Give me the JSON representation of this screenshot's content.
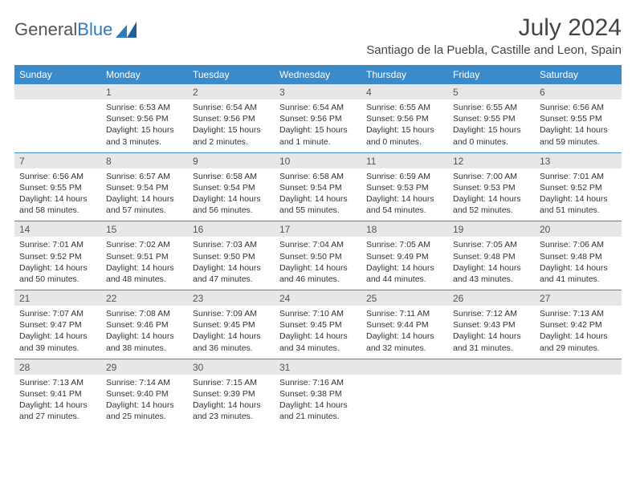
{
  "logo": {
    "text1": "General",
    "text2": "Blue"
  },
  "title": "July 2024",
  "location": "Santiago de la Puebla, Castille and Leon, Spain",
  "colors": {
    "header_bg": "#3b8aca",
    "header_text": "#ffffff",
    "daynum_bg": "#e7e7e7",
    "border": "#3b8aca"
  },
  "day_headers": [
    "Sunday",
    "Monday",
    "Tuesday",
    "Wednesday",
    "Thursday",
    "Friday",
    "Saturday"
  ],
  "weeks": [
    [
      {
        "num": "",
        "lines": []
      },
      {
        "num": "1",
        "lines": [
          "Sunrise: 6:53 AM",
          "Sunset: 9:56 PM",
          "Daylight: 15 hours",
          "and 3 minutes."
        ]
      },
      {
        "num": "2",
        "lines": [
          "Sunrise: 6:54 AM",
          "Sunset: 9:56 PM",
          "Daylight: 15 hours",
          "and 2 minutes."
        ]
      },
      {
        "num": "3",
        "lines": [
          "Sunrise: 6:54 AM",
          "Sunset: 9:56 PM",
          "Daylight: 15 hours",
          "and 1 minute."
        ]
      },
      {
        "num": "4",
        "lines": [
          "Sunrise: 6:55 AM",
          "Sunset: 9:56 PM",
          "Daylight: 15 hours",
          "and 0 minutes."
        ]
      },
      {
        "num": "5",
        "lines": [
          "Sunrise: 6:55 AM",
          "Sunset: 9:55 PM",
          "Daylight: 15 hours",
          "and 0 minutes."
        ]
      },
      {
        "num": "6",
        "lines": [
          "Sunrise: 6:56 AM",
          "Sunset: 9:55 PM",
          "Daylight: 14 hours",
          "and 59 minutes."
        ]
      }
    ],
    [
      {
        "num": "7",
        "lines": [
          "Sunrise: 6:56 AM",
          "Sunset: 9:55 PM",
          "Daylight: 14 hours",
          "and 58 minutes."
        ]
      },
      {
        "num": "8",
        "lines": [
          "Sunrise: 6:57 AM",
          "Sunset: 9:54 PM",
          "Daylight: 14 hours",
          "and 57 minutes."
        ]
      },
      {
        "num": "9",
        "lines": [
          "Sunrise: 6:58 AM",
          "Sunset: 9:54 PM",
          "Daylight: 14 hours",
          "and 56 minutes."
        ]
      },
      {
        "num": "10",
        "lines": [
          "Sunrise: 6:58 AM",
          "Sunset: 9:54 PM",
          "Daylight: 14 hours",
          "and 55 minutes."
        ]
      },
      {
        "num": "11",
        "lines": [
          "Sunrise: 6:59 AM",
          "Sunset: 9:53 PM",
          "Daylight: 14 hours",
          "and 54 minutes."
        ]
      },
      {
        "num": "12",
        "lines": [
          "Sunrise: 7:00 AM",
          "Sunset: 9:53 PM",
          "Daylight: 14 hours",
          "and 52 minutes."
        ]
      },
      {
        "num": "13",
        "lines": [
          "Sunrise: 7:01 AM",
          "Sunset: 9:52 PM",
          "Daylight: 14 hours",
          "and 51 minutes."
        ]
      }
    ],
    [
      {
        "num": "14",
        "lines": [
          "Sunrise: 7:01 AM",
          "Sunset: 9:52 PM",
          "Daylight: 14 hours",
          "and 50 minutes."
        ]
      },
      {
        "num": "15",
        "lines": [
          "Sunrise: 7:02 AM",
          "Sunset: 9:51 PM",
          "Daylight: 14 hours",
          "and 48 minutes."
        ]
      },
      {
        "num": "16",
        "lines": [
          "Sunrise: 7:03 AM",
          "Sunset: 9:50 PM",
          "Daylight: 14 hours",
          "and 47 minutes."
        ]
      },
      {
        "num": "17",
        "lines": [
          "Sunrise: 7:04 AM",
          "Sunset: 9:50 PM",
          "Daylight: 14 hours",
          "and 46 minutes."
        ]
      },
      {
        "num": "18",
        "lines": [
          "Sunrise: 7:05 AM",
          "Sunset: 9:49 PM",
          "Daylight: 14 hours",
          "and 44 minutes."
        ]
      },
      {
        "num": "19",
        "lines": [
          "Sunrise: 7:05 AM",
          "Sunset: 9:48 PM",
          "Daylight: 14 hours",
          "and 43 minutes."
        ]
      },
      {
        "num": "20",
        "lines": [
          "Sunrise: 7:06 AM",
          "Sunset: 9:48 PM",
          "Daylight: 14 hours",
          "and 41 minutes."
        ]
      }
    ],
    [
      {
        "num": "21",
        "lines": [
          "Sunrise: 7:07 AM",
          "Sunset: 9:47 PM",
          "Daylight: 14 hours",
          "and 39 minutes."
        ]
      },
      {
        "num": "22",
        "lines": [
          "Sunrise: 7:08 AM",
          "Sunset: 9:46 PM",
          "Daylight: 14 hours",
          "and 38 minutes."
        ]
      },
      {
        "num": "23",
        "lines": [
          "Sunrise: 7:09 AM",
          "Sunset: 9:45 PM",
          "Daylight: 14 hours",
          "and 36 minutes."
        ]
      },
      {
        "num": "24",
        "lines": [
          "Sunrise: 7:10 AM",
          "Sunset: 9:45 PM",
          "Daylight: 14 hours",
          "and 34 minutes."
        ]
      },
      {
        "num": "25",
        "lines": [
          "Sunrise: 7:11 AM",
          "Sunset: 9:44 PM",
          "Daylight: 14 hours",
          "and 32 minutes."
        ]
      },
      {
        "num": "26",
        "lines": [
          "Sunrise: 7:12 AM",
          "Sunset: 9:43 PM",
          "Daylight: 14 hours",
          "and 31 minutes."
        ]
      },
      {
        "num": "27",
        "lines": [
          "Sunrise: 7:13 AM",
          "Sunset: 9:42 PM",
          "Daylight: 14 hours",
          "and 29 minutes."
        ]
      }
    ],
    [
      {
        "num": "28",
        "lines": [
          "Sunrise: 7:13 AM",
          "Sunset: 9:41 PM",
          "Daylight: 14 hours",
          "and 27 minutes."
        ]
      },
      {
        "num": "29",
        "lines": [
          "Sunrise: 7:14 AM",
          "Sunset: 9:40 PM",
          "Daylight: 14 hours",
          "and 25 minutes."
        ]
      },
      {
        "num": "30",
        "lines": [
          "Sunrise: 7:15 AM",
          "Sunset: 9:39 PM",
          "Daylight: 14 hours",
          "and 23 minutes."
        ]
      },
      {
        "num": "31",
        "lines": [
          "Sunrise: 7:16 AM",
          "Sunset: 9:38 PM",
          "Daylight: 14 hours",
          "and 21 minutes."
        ]
      },
      {
        "num": "",
        "lines": []
      },
      {
        "num": "",
        "lines": []
      },
      {
        "num": "",
        "lines": []
      }
    ]
  ]
}
